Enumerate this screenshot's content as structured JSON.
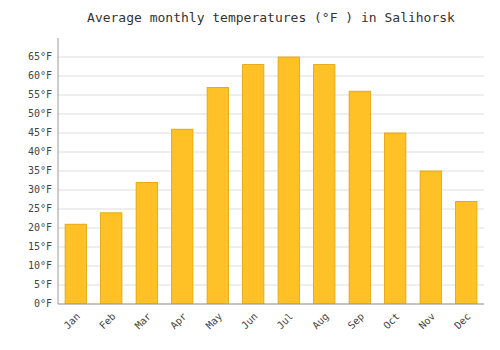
{
  "chart_data": {
    "type": "bar",
    "title": "Average monthly temperatures (°F ) in Salihorsk",
    "categories": [
      "Jan",
      "Feb",
      "Mar",
      "Apr",
      "May",
      "Jun",
      "Jul",
      "Aug",
      "Sep",
      "Oct",
      "Nov",
      "Dec"
    ],
    "values": [
      21,
      24,
      32,
      46,
      57,
      63,
      65,
      63,
      56,
      45,
      35,
      27
    ],
    "color": "#FFC125",
    "ylim": [
      0,
      70
    ],
    "yticks": [
      {
        "value": 0,
        "label": "0°F"
      },
      {
        "value": 5,
        "label": "5°F"
      },
      {
        "value": 10,
        "label": "10°F"
      },
      {
        "value": 15,
        "label": "15°F"
      },
      {
        "value": 20,
        "label": "20°F"
      },
      {
        "value": 25,
        "label": "25°F"
      },
      {
        "value": 30,
        "label": "30°F"
      },
      {
        "value": 35,
        "label": "35°F"
      },
      {
        "value": 40,
        "label": "40°F"
      },
      {
        "value": 45,
        "label": "45°F"
      },
      {
        "value": 50,
        "label": "50°F"
      },
      {
        "value": 55,
        "label": "55°F"
      },
      {
        "value": 60,
        "label": "60°F"
      },
      {
        "value": 65,
        "label": "65°F"
      }
    ],
    "grid": true
  }
}
